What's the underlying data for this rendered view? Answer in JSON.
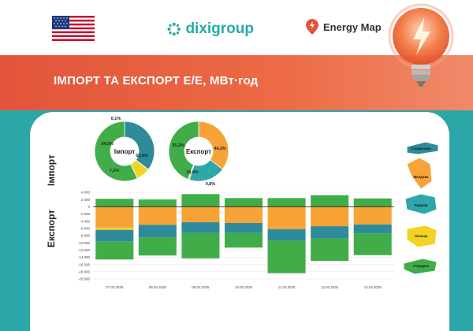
{
  "header": {
    "brand": "dixigroup",
    "energy_map": "Energy Map"
  },
  "banner": {
    "title": "ІМПОРТ ТА ЕКСПОРТ Е/Е, МВт·год"
  },
  "side_labels": {
    "import": "Імпорт",
    "export": "Експорт"
  },
  "colors": {
    "slovakia": "#2e8b9a",
    "moldova": "#f7a337",
    "romania": "#2ea7aa",
    "poland": "#f3d224",
    "hungary": "#41ad49",
    "accent": "#e2543b",
    "teal": "#2ba7aa"
  },
  "icons": [
    "us-flag-icon",
    "dixigroup-logo-icon",
    "map-pin-icon",
    "lightbulb-icon",
    "country-map-icon"
  ],
  "legend": [
    "Словаччина",
    "Молдова",
    "Румунія",
    "Польща",
    "Угорщина"
  ],
  "chart_data": [
    {
      "type": "pie",
      "center_label": "Імпорт",
      "categories": [
        "Словаччина",
        "Молдова",
        "Румунія",
        "Польща",
        "Угорщина"
      ],
      "values": [
        34.5,
        0.1,
        0,
        7.3,
        55.6
      ],
      "labels": [
        "34,5%",
        "0,1%",
        "",
        "7,3%",
        "55,6%"
      ]
    },
    {
      "type": "pie",
      "center_label": "Експорт",
      "categories": [
        "Словаччина",
        "Молдова",
        "Румунія",
        "Польща",
        "Угорщина"
      ],
      "values": [
        0,
        35.2,
        19.9,
        0.8,
        44.2
      ],
      "labels": [
        "",
        "35,2%",
        "19,9%",
        "0,8%",
        "44,2%"
      ]
    },
    {
      "type": "bar",
      "stacked": true,
      "categories": [
        "07.03.2025",
        "08.03.2025",
        "09.03.2025",
        "10.03.2025",
        "11.03.2025",
        "12.03.2025",
        "13.03.2025"
      ],
      "series": [
        {
          "name": "Словаччина",
          "import": [
            0,
            0,
            0,
            0,
            0,
            0,
            0
          ],
          "export": [
            3200,
            3500,
            3000,
            2800,
            3200,
            3400,
            2500
          ]
        },
        {
          "name": "Молдова",
          "import": [
            0,
            0,
            0,
            0,
            0,
            0,
            0
          ],
          "export": [
            5800,
            5000,
            4300,
            4500,
            6200,
            5400,
            4900
          ]
        },
        {
          "name": "Румунія",
          "import": [
            0,
            0,
            0,
            0,
            0,
            0,
            0
          ],
          "export": [
            0,
            0,
            0,
            0,
            0,
            0,
            0
          ]
        },
        {
          "name": "Польща",
          "import": [
            0,
            0,
            0,
            0,
            0,
            0,
            0
          ],
          "export": [
            600,
            0,
            0,
            0,
            0,
            0,
            0
          ]
        },
        {
          "name": "Угорщина",
          "import": [
            2200,
            2000,
            3500,
            2400,
            2400,
            3200,
            2300
          ],
          "export": [
            5000,
            5000,
            7000,
            4000,
            9000,
            6200,
            6000
          ]
        }
      ],
      "ylim": [
        -20000,
        4000
      ],
      "yticks": [
        "4 000",
        "2 000",
        "0",
        "-2 000",
        "-4 000",
        "-6 000",
        "-8 000",
        "-10 000",
        "-12 000",
        "-14 000",
        "-16 000",
        "-18 000",
        "-20 000"
      ],
      "ytick_values": [
        4000,
        2000,
        0,
        -2000,
        -4000,
        -6000,
        -8000,
        -10000,
        -12000,
        -14000,
        -16000,
        -18000,
        -20000
      ],
      "grid": true
    }
  ]
}
